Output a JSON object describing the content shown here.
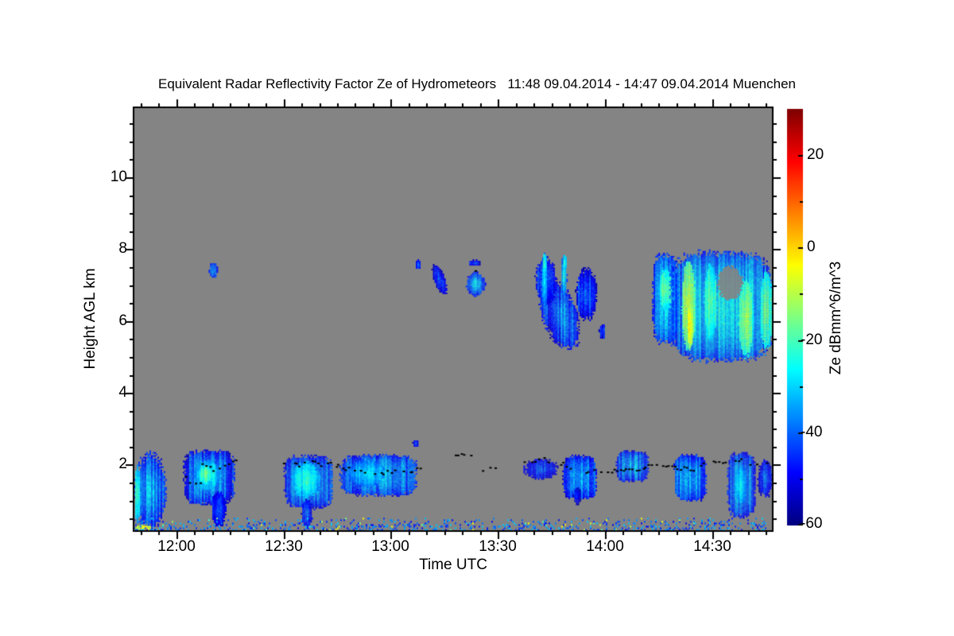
{
  "figure": {
    "kind": "radar time-height quicklook",
    "station": "Muenchen"
  },
  "chart_data": {
    "type": "heatmap",
    "title": "Equivalent Radar Reflectivity Factor Ze of Hydrometeors   11:48 09.04.2014 - 14:47 09.04.2014 Muenchen",
    "xlabel": "Time UTC",
    "ylabel": "Height AGL km",
    "x_range_hours": [
      11.8,
      14.7833
    ],
    "x_ticks": [
      {
        "label": "12:00",
        "hour": 12.0
      },
      {
        "label": "12:30",
        "hour": 12.5
      },
      {
        "label": "13:00",
        "hour": 13.0
      },
      {
        "label": "13:30",
        "hour": 13.5
      },
      {
        "label": "14:00",
        "hour": 14.0
      },
      {
        "label": "14:30",
        "hour": 14.5
      }
    ],
    "x_minor_step_minutes": 5,
    "y_range_km": [
      0.15,
      11.95
    ],
    "y_ticks": [
      {
        "label": "2",
        "km": 2
      },
      {
        "label": "4",
        "km": 4
      },
      {
        "label": "6",
        "km": 6
      },
      {
        "label": "8",
        "km": 8
      },
      {
        "label": "10",
        "km": 10
      }
    ],
    "y_minor_step_km": 0.5,
    "grid": false,
    "colors": {
      "no_data_gray": "#848484",
      "frame": "#000000",
      "cloud_base_dots": "#000000",
      "page_background": "#ffffff"
    },
    "colorbar": {
      "label": "Ze dBmm^6/m^3",
      "range": [
        -60,
        30
      ],
      "ticks": [
        {
          "label": "20",
          "value": 20
        },
        {
          "label": "0",
          "value": 0
        },
        {
          "label": "-20",
          "value": -20
        },
        {
          "label": "-40",
          "value": -40
        },
        {
          "label": "-60",
          "value": -60
        }
      ],
      "minor_step": 10,
      "colormap": "jet"
    },
    "features": [
      {
        "name": "left-edge-cloud",
        "t0": 11.8,
        "t1": 11.95,
        "h0": 0.25,
        "h1": 2.35,
        "ze_core": -30,
        "ze_edge": -45,
        "striation": 10
      },
      {
        "name": "left-edge-bright-column",
        "t0": 11.8,
        "t1": 11.83,
        "h0": 0.4,
        "h1": 2.0,
        "ze_core": -17,
        "ze_edge": -32,
        "soft": 0.3
      },
      {
        "name": "surface-bright-streak",
        "t0": 11.8,
        "t1": 11.89,
        "h0": 0.12,
        "h1": 0.34,
        "ze_core": 2,
        "ze_edge": -10,
        "soft": 0.2
      },
      {
        "name": "low-cloud-1205",
        "t0": 12.03,
        "t1": 12.27,
        "h0": 0.9,
        "h1": 2.42,
        "ze_core": -33,
        "ze_edge": -48,
        "striation": 12,
        "pow": 4
      },
      {
        "name": "low-cloud-1205-core",
        "t0": 12.08,
        "t1": 12.2,
        "h0": 1.3,
        "h1": 2.15,
        "ze_core": -22,
        "ze_edge": -34,
        "soft": 0.4
      },
      {
        "name": "low-cloud-1205-green-spot",
        "t0": 12.1,
        "t1": 12.16,
        "h0": 1.5,
        "h1": 2.0,
        "ze_core": -15,
        "ze_edge": -26,
        "soft": 0.3
      },
      {
        "name": "low-cloud-1205-virga-tail",
        "t0": 12.16,
        "t1": 12.23,
        "h0": 0.28,
        "h1": 1.3,
        "ze_core": -40,
        "ze_edge": -50,
        "soft": 0.35
      },
      {
        "name": "mid-blip-1209",
        "t0": 12.15,
        "t1": 12.19,
        "h0": 7.2,
        "h1": 7.65,
        "ze_core": -36,
        "ze_edge": -48,
        "soft": 0.3
      },
      {
        "name": "low-cloud-1230",
        "t0": 12.5,
        "t1": 12.73,
        "h0": 0.8,
        "h1": 2.28,
        "ze_core": -32,
        "ze_edge": -47,
        "striation": 12,
        "pow": 4
      },
      {
        "name": "low-cloud-1230-core",
        "t0": 12.53,
        "t1": 12.67,
        "h0": 1.1,
        "h1": 2.1,
        "ze_core": -22,
        "ze_edge": -34,
        "soft": 0.4
      },
      {
        "name": "low-cloud-1230-virga",
        "t0": 12.58,
        "t1": 12.63,
        "h0": 0.25,
        "h1": 1.05,
        "ze_core": -38,
        "ze_edge": -50,
        "soft": 0.3
      },
      {
        "name": "low-cloud-1246",
        "t0": 12.76,
        "t1": 13.12,
        "h0": 1.15,
        "h1": 2.3,
        "ze_core": -33,
        "ze_edge": -46,
        "striation": 12,
        "pow": 4
      },
      {
        "name": "low-cloud-1246-core",
        "t0": 12.8,
        "t1": 12.97,
        "h0": 1.4,
        "h1": 2.15,
        "ze_core": -26,
        "ze_edge": -38,
        "soft": 0.4
      },
      {
        "name": "speck-1306",
        "t0": 13.1,
        "t1": 13.13,
        "h0": 2.5,
        "h1": 2.72,
        "ze_core": -42,
        "ze_edge": -52,
        "soft": 0.25
      },
      {
        "name": "cirrus-speck-1307",
        "t0": 13.11,
        "t1": 13.14,
        "h0": 7.45,
        "h1": 7.72,
        "ze_core": -40,
        "ze_edge": -50,
        "soft": 0.25
      },
      {
        "name": "cirrus-streak-1312",
        "t0": 13.19,
        "t1": 13.26,
        "h0": 6.85,
        "h1": 7.5,
        "ze_core": -40,
        "ze_edge": -52,
        "slant": 0.8,
        "soft": 0.35
      },
      {
        "name": "cirrus-oval-1322",
        "t0": 13.35,
        "t1": 13.44,
        "h0": 6.72,
        "h1": 7.38,
        "ze_core": -27,
        "ze_edge": -46,
        "soft": 0.4
      },
      {
        "name": "cirrus-dashes-1322",
        "t0": 13.36,
        "t1": 13.42,
        "h0": 7.55,
        "h1": 7.72,
        "ze_core": -42,
        "ze_edge": -52,
        "soft": 0.25
      },
      {
        "name": "low-specks-1337",
        "t0": 13.62,
        "t1": 13.78,
        "h0": 1.6,
        "h1": 2.2,
        "ze_core": -41,
        "ze_edge": -51,
        "soft": 0.6
      },
      {
        "name": "midcloud-main",
        "t0": 13.69,
        "t1": 13.88,
        "h0": 5.3,
        "h1": 7.1,
        "ze_core": -35,
        "ze_edge": -48,
        "slant": 0.5,
        "striation": 14
      },
      {
        "name": "midcloud-upper",
        "t0": 13.67,
        "t1": 13.77,
        "h0": 6.5,
        "h1": 7.8,
        "ze_core": -35,
        "ze_edge": -48
      },
      {
        "name": "midcloud-bright-streak-1",
        "t0": 13.7,
        "t1": 13.73,
        "h0": 6.4,
        "h1": 7.9,
        "ze_core": -26,
        "ze_edge": -40,
        "soft": 0.35
      },
      {
        "name": "midcloud-green-tip-1",
        "t0": 13.705,
        "t1": 13.725,
        "h0": 7.3,
        "h1": 7.92,
        "ze_core": -17,
        "ze_edge": -30,
        "soft": 0.25
      },
      {
        "name": "midcloud-bright-streak-2",
        "t0": 13.79,
        "t1": 13.82,
        "h0": 6.7,
        "h1": 7.88,
        "ze_core": -26,
        "ze_edge": -40,
        "soft": 0.35
      },
      {
        "name": "midcloud-green-tip-2",
        "t0": 13.8,
        "t1": 13.818,
        "h0": 7.4,
        "h1": 7.88,
        "ze_core": -17,
        "ze_edge": -30,
        "soft": 0.25
      },
      {
        "name": "midcloud-right-bits",
        "t0": 13.86,
        "t1": 13.96,
        "h0": 6.0,
        "h1": 7.5,
        "ze_core": -37,
        "ze_edge": -50,
        "striation": 12,
        "soft": 0.55
      },
      {
        "name": "midcloud-detached-dash",
        "t0": 13.97,
        "t1": 14.0,
        "h0": 5.5,
        "h1": 5.95,
        "ze_core": -42,
        "ze_edge": -52,
        "soft": 0.3
      },
      {
        "name": "lowcloud-1349",
        "t0": 13.8,
        "t1": 13.96,
        "h0": 1.05,
        "h1": 2.28,
        "ze_core": -34,
        "ze_edge": -47,
        "pow": 4,
        "striation": 12
      },
      {
        "name": "lowcloud-1349-tail",
        "t0": 13.85,
        "t1": 13.885,
        "h0": 0.9,
        "h1": 1.4,
        "ze_core": -42,
        "ze_edge": -52,
        "soft": 0.3
      },
      {
        "name": "lowcloud-1403",
        "t0": 14.05,
        "t1": 14.2,
        "h0": 1.55,
        "h1": 2.4,
        "ze_core": -34,
        "ze_edge": -47,
        "pow": 4,
        "striation": 12
      },
      {
        "name": "lowcloud-1419",
        "t0": 14.32,
        "t1": 14.47,
        "h0": 1.0,
        "h1": 2.3,
        "ze_core": -33,
        "ze_edge": -46,
        "pow": 4,
        "striation": 12
      },
      {
        "name": "bigcloud-left-blob",
        "t0": 14.22,
        "t1": 14.34,
        "h0": 5.4,
        "h1": 7.9,
        "ze_core": -30,
        "ze_edge": -44,
        "striation": 10,
        "pow": 4
      },
      {
        "name": "bigcloud-left-yellow",
        "t0": 14.25,
        "t1": 14.31,
        "h0": 6.3,
        "h1": 7.5,
        "ze_core": -13,
        "ze_edge": -26,
        "soft": 0.35
      },
      {
        "name": "bigcloud-main-mass",
        "t0": 14.3,
        "t1": 14.78,
        "h0": 4.9,
        "h1": 7.95,
        "ze_core": -28,
        "ze_edge": -43,
        "striation": 15,
        "pow": 4
      },
      {
        "name": "bigcloud-orange-streak",
        "t0": 14.355,
        "t1": 14.42,
        "h0": 5.2,
        "h1": 7.7,
        "ze_core": -6,
        "ze_edge": -18,
        "striation": 5,
        "soft": 0.3
      },
      {
        "name": "bigcloud-orange-core",
        "t0": 14.38,
        "t1": 14.41,
        "h0": 5.3,
        "h1": 6.5,
        "ze_core": -1,
        "ze_edge": -9,
        "soft": 0.25
      },
      {
        "name": "bigcloud-yellow-streak-2",
        "t0": 14.46,
        "t1": 14.52,
        "h0": 5.5,
        "h1": 7.6,
        "ze_core": -14,
        "ze_edge": -26,
        "soft": 0.3
      },
      {
        "name": "bigcloud-right-yellow-1",
        "t0": 14.62,
        "t1": 14.69,
        "h0": 5.0,
        "h1": 7.2,
        "ze_core": -11,
        "ze_edge": -24,
        "soft": 0.3
      },
      {
        "name": "bigcloud-right-yellow-2",
        "t0": 14.72,
        "t1": 14.78,
        "h0": 5.2,
        "h1": 7.4,
        "ze_core": -15,
        "ze_edge": -27,
        "soft": 0.3
      },
      {
        "name": "bigcloud-gray-notch",
        "t0": 14.52,
        "t1": 14.64,
        "h0": 6.6,
        "h1": 7.55,
        "type": "gray",
        "soft": 0.4
      },
      {
        "name": "lowcloud-1434",
        "t0": 14.57,
        "t1": 14.7,
        "h0": 0.55,
        "h1": 2.35,
        "ze_core": -32,
        "ze_edge": -45,
        "pow": 4,
        "striation": 12
      },
      {
        "name": "lowcloud-1434-core",
        "t0": 14.6,
        "t1": 14.66,
        "h0": 0.9,
        "h1": 2.0,
        "ze_core": -25,
        "ze_edge": -36,
        "soft": 0.4
      },
      {
        "name": "lowcloud-1443",
        "t0": 14.71,
        "t1": 14.78,
        "h0": 1.1,
        "h1": 2.15,
        "ze_core": -38,
        "ze_edge": -50,
        "soft": 0.55
      }
    ],
    "noise_band": {
      "h0": 0.16,
      "h1": 0.56,
      "density": 0.32,
      "ze_min": -50,
      "ze_max": -30,
      "hot_prob": 0.055,
      "hot_boost": 28
    },
    "cloud_base_dots": [
      {
        "t": [
          12.03,
          12.07,
          12.12
        ],
        "h": [
          1.78,
          1.42,
          1.62
        ],
        "gap": 0.5
      },
      {
        "t": [
          12.12,
          12.17,
          12.22,
          12.27
        ],
        "h": [
          2.05,
          1.88,
          2.0,
          2.1
        ],
        "gap": 0.2
      },
      {
        "t": [
          12.5,
          12.56,
          12.62,
          12.68,
          12.72
        ],
        "h": [
          2.05,
          2.0,
          2.1,
          2.02,
          2.06
        ],
        "gap": 0.2
      },
      {
        "t": [
          12.74,
          12.82,
          12.92,
          13.0,
          13.08,
          13.13
        ],
        "h": [
          2.0,
          1.85,
          1.76,
          1.82,
          1.76,
          1.95
        ],
        "gap": 0.15
      },
      {
        "t": [
          13.28,
          13.33,
          13.39
        ],
        "h": [
          2.26,
          2.3,
          2.26
        ],
        "gap": 0.3
      },
      {
        "t": [
          13.43,
          13.48
        ],
        "h": [
          1.9,
          1.87
        ],
        "gap": 0.45
      },
      {
        "t": [
          13.36,
          13.41
        ],
        "h": [
          7.45,
          7.48
        ],
        "gap": 0.55
      },
      {
        "t": [
          13.66,
          13.7
        ],
        "h": [
          7.92,
          7.9
        ],
        "gap": 0.5
      },
      {
        "t": [
          13.62,
          13.71,
          13.79
        ],
        "h": [
          2.1,
          2.16,
          2.06
        ],
        "gap": 0.5
      },
      {
        "t": [
          13.8,
          13.88,
          13.94,
          14.02,
          14.1,
          14.2,
          14.3,
          14.4,
          14.47
        ],
        "h": [
          2.05,
          1.8,
          1.85,
          1.82,
          1.86,
          1.96,
          2.0,
          1.86,
          2.05
        ],
        "gap": 0.12
      },
      {
        "t": [
          14.5,
          14.56,
          14.62,
          14.68,
          14.74,
          14.78
        ],
        "h": [
          2.1,
          2.05,
          2.16,
          2.0,
          2.12,
          2.05
        ],
        "gap": 0.45
      }
    ]
  }
}
